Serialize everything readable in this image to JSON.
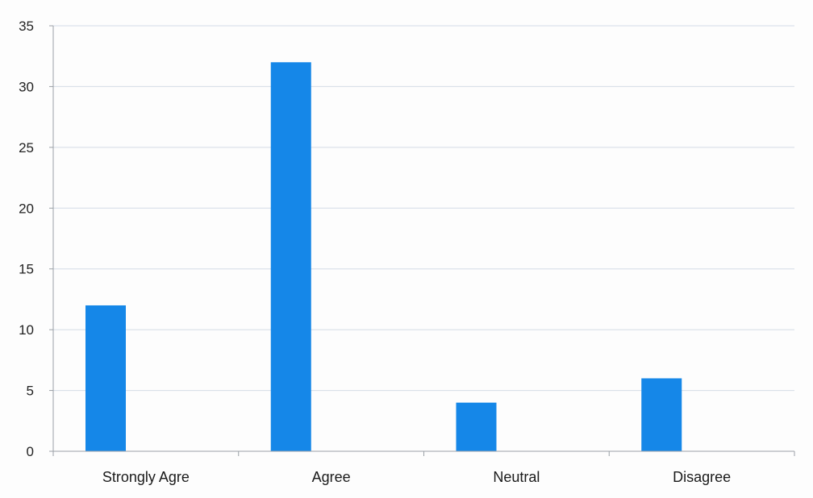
{
  "chart_data": {
    "type": "bar",
    "categories": [
      "Strongly Agre",
      "Agree",
      "Neutral",
      "Disagree"
    ],
    "series": [
      {
        "values": [
          12,
          32,
          4,
          6
        ]
      }
    ],
    "title": "",
    "xlabel": "",
    "ylabel": "",
    "ylim": [
      0,
      35
    ],
    "yticks": [
      "0",
      "5",
      "10",
      "15",
      "20",
      "25",
      "30",
      "35"
    ],
    "grid": true,
    "legend": "none",
    "colors": {
      "bar": "#1587e8",
      "grid": "#d4dbe6",
      "axis": "#9aa0a6"
    }
  }
}
